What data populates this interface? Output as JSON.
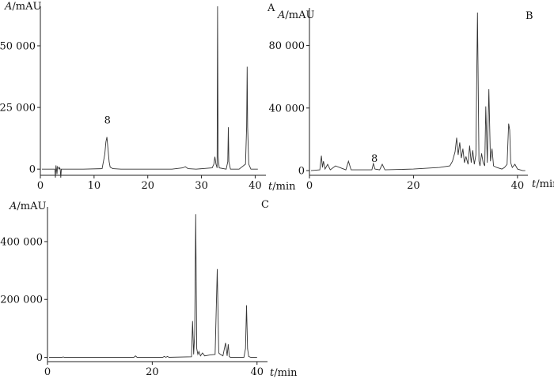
{
  "chart_data": [
    {
      "type": "line",
      "panel_label": "A",
      "ylabel": "A/mAU",
      "xlabel": "t/min",
      "xlim": [
        0,
        42
      ],
      "ylim": [
        -2500,
        66000
      ],
      "xticks": [
        0,
        10,
        20,
        30,
        40
      ],
      "xtick_labels": [
        "0",
        "10",
        "20",
        "30",
        "40"
      ],
      "yticks": [
        0,
        25000,
        50000
      ],
      "ytick_labels": [
        "0",
        "25 000",
        "50 000"
      ],
      "annotations": [
        {
          "text": "8",
          "x": 12.5,
          "y": 18500
        }
      ],
      "series": [
        {
          "x": [
            0.3,
            2.7,
            2.8,
            2.9,
            3.0,
            3.1,
            3.2,
            3.5,
            3.6,
            3.7,
            3.8,
            3.9,
            4.0,
            8.0,
            11.5,
            12.0,
            12.2,
            12.4,
            12.5,
            12.6,
            12.8,
            13.0,
            13.5,
            15,
            20,
            24.5,
            26.5,
            27,
            27.5,
            29,
            32.0,
            32.3,
            32.5,
            32.7,
            32.9,
            33.0,
            33.1,
            33.3,
            34.6,
            34.9,
            35.0,
            35.1,
            35.4,
            37.0,
            38.2,
            38.4,
            38.5,
            38.6,
            38.8,
            39.2,
            40.5
          ],
          "y": [
            0,
            0,
            -3500,
            1500,
            0,
            -2000,
            1000,
            0,
            600,
            0,
            -3500,
            0,
            0,
            0,
            200,
            6000,
            11000,
            13000,
            10500,
            8000,
            3000,
            800,
            200,
            0,
            0,
            0,
            500,
            1000,
            200,
            0,
            500,
            2000,
            5000,
            2000,
            500,
            66000,
            5000,
            500,
            0,
            3000,
            17000,
            3000,
            0,
            0,
            2000,
            17000,
            41500,
            17000,
            2000,
            0,
            0
          ]
        }
      ]
    },
    {
      "type": "line",
      "panel_label": "B",
      "ylabel": "A/mAU",
      "xlabel": "t/min",
      "xlim": [
        0,
        42
      ],
      "ylim": [
        -3000,
        104000
      ],
      "xticks": [
        0,
        20,
        40
      ],
      "xtick_labels": [
        "0",
        "20",
        "40"
      ],
      "yticks": [
        0,
        40000,
        80000
      ],
      "ytick_labels": [
        "0",
        "40 000",
        "80 000"
      ],
      "annotations": [
        {
          "text": "8",
          "x": 12.5,
          "y": 5500
        }
      ],
      "series": [
        {
          "x": [
            0.3,
            2.0,
            2.3,
            2.5,
            2.7,
            3.0,
            3.5,
            4.0,
            5.0,
            7.0,
            7.5,
            8.0,
            12.0,
            12.3,
            12.6,
            13.5,
            14.0,
            14.5,
            20,
            25,
            27.0,
            27.5,
            28.0,
            28.3,
            28.6,
            28.9,
            29.2,
            29.5,
            29.8,
            30.1,
            30.5,
            30.8,
            31.1,
            31.4,
            31.7,
            32.0,
            32.3,
            32.6,
            32.8,
            33.1,
            33.4,
            33.7,
            33.9,
            34.2,
            34.5,
            34.8,
            35.1,
            35.4,
            36.0,
            37.0,
            37.5,
            38.0,
            38.3,
            38.5,
            38.7,
            39.0,
            39.5,
            40.0,
            40.5,
            41.0,
            41.5
          ],
          "y": [
            0,
            500,
            9500,
            2000,
            6000,
            1000,
            4000,
            500,
            3000,
            500,
            6000,
            500,
            500,
            4500,
            1000,
            500,
            4000,
            500,
            1000,
            2000,
            3000,
            6000,
            12000,
            21000,
            10000,
            18000,
            8000,
            14000,
            5000,
            9000,
            4000,
            16000,
            5000,
            13000,
            4000,
            10000,
            101000,
            6000,
            3000,
            11000,
            5000,
            3000,
            41000,
            5000,
            52000,
            6000,
            14000,
            3000,
            2000,
            1000,
            2000,
            4000,
            30000,
            26000,
            5000,
            2000,
            4000,
            1000,
            500,
            0,
            0
          ]
        }
      ]
    },
    {
      "type": "line",
      "panel_label": "C",
      "ylabel": "A/mAU",
      "xlabel": "t/min",
      "xlim": [
        0,
        42
      ],
      "ylim": [
        -15000,
        520000
      ],
      "xticks": [
        0,
        20,
        40
      ],
      "xtick_labels": [
        "0",
        "20",
        "40"
      ],
      "yticks": [
        0,
        200000,
        400000
      ],
      "ytick_labels": [
        "0",
        "200 000",
        "400 000"
      ],
      "annotations": [],
      "series": [
        {
          "x": [
            0.3,
            2.8,
            3.0,
            3.2,
            16.5,
            16.8,
            17.1,
            22.0,
            22.3,
            22.6,
            22.9,
            23.2,
            27.5,
            27.7,
            27.9,
            28.1,
            28.3,
            28.5,
            28.7,
            28.9,
            29.2,
            29.6,
            30,
            31,
            32.0,
            32.4,
            32.7,
            33.0,
            33.5,
            34.0,
            34.3,
            34.5,
            34.7,
            34.9,
            37.5,
            37.8,
            38.0,
            38.2,
            38.4,
            38.8,
            40.0
          ],
          "y": [
            0,
            0,
            1500,
            0,
            0,
            5000,
            0,
            0,
            3000,
            0,
            3000,
            0,
            2000,
            125000,
            10000,
            80000,
            495000,
            30000,
            10000,
            20000,
            5000,
            15000,
            5000,
            8000,
            10000,
            305000,
            15000,
            10000,
            5000,
            50000,
            5000,
            45000,
            3000,
            0,
            0,
            30000,
            180000,
            30000,
            3000,
            0,
            0
          ]
        }
      ]
    }
  ]
}
